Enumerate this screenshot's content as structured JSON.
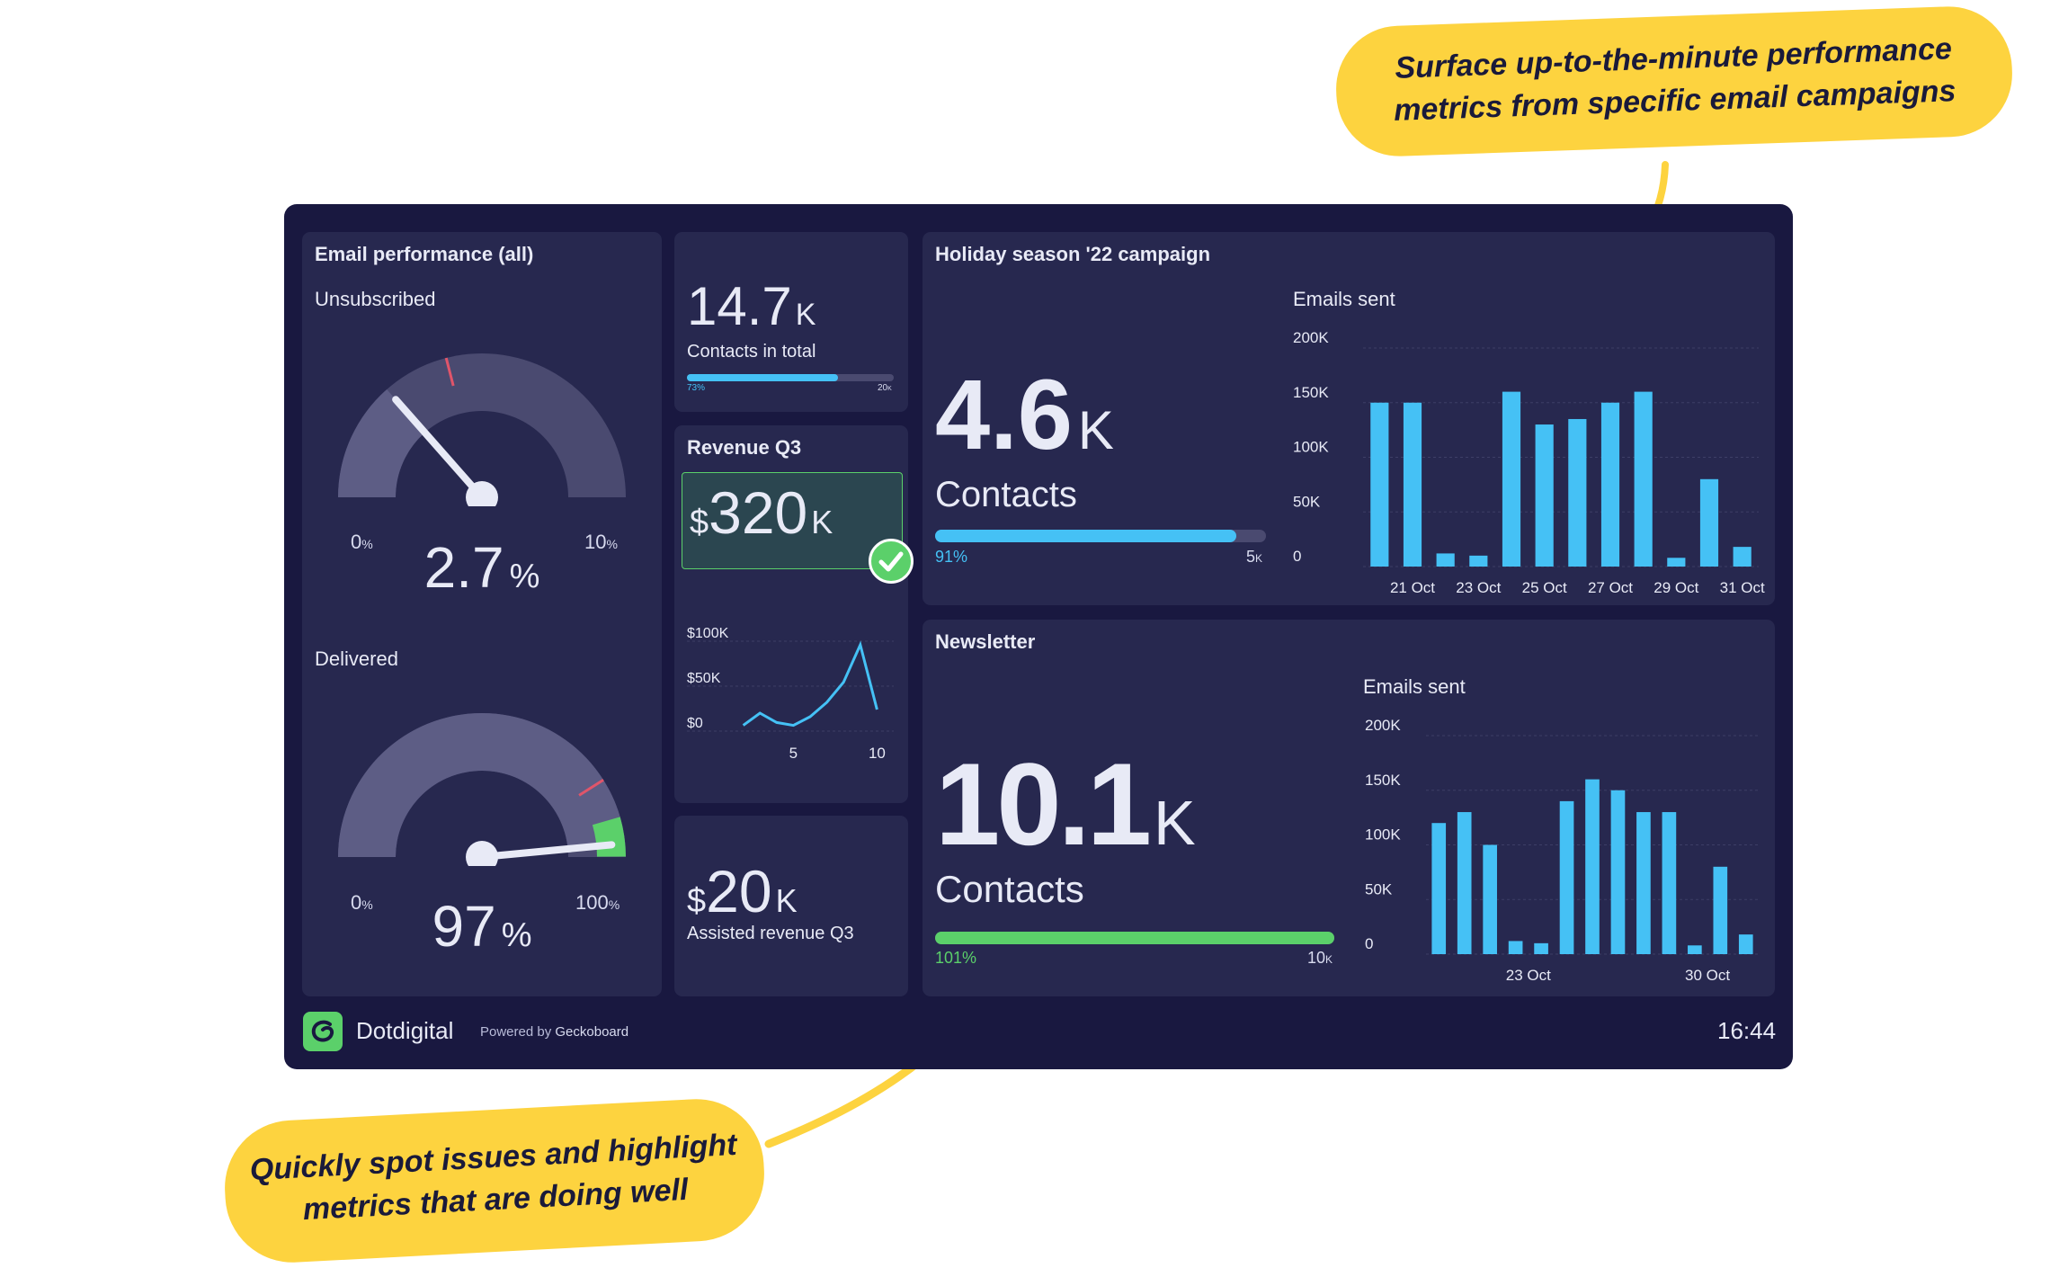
{
  "callouts": {
    "top": [
      "Surface up-to-the-minute performance",
      "metrics from specific email campaigns"
    ],
    "bottom": [
      "Quickly spot issues and highlight",
      "metrics that are doing well"
    ]
  },
  "email_perf": {
    "title": "Email performance (all)",
    "unsub": {
      "label": "Unsubscribed",
      "value": "2.7",
      "unit": "%",
      "min": "0",
      "max": "10",
      "unit_small": "%",
      "fraction": 0.27
    },
    "delivered": {
      "label": "Delivered",
      "value": "97",
      "unit": "%",
      "min": "0",
      "max": "100",
      "unit_small": "%",
      "fraction": 0.97
    }
  },
  "contacts_total": {
    "value": "14.7",
    "suffix": "K",
    "label": "Contacts in total",
    "progress": 0.73,
    "bar_left": "73%",
    "bar_right": "20",
    "bar_right_unit": "K"
  },
  "revenue": {
    "title": "Revenue Q3",
    "currency": "$",
    "value": "320",
    "suffix": "K",
    "status": "check-icon",
    "chart_data": {
      "type": "line",
      "x": [
        2,
        3,
        4,
        5,
        6,
        7,
        8,
        9,
        10
      ],
      "values": [
        8,
        25,
        12,
        8,
        20,
        40,
        68,
        120,
        30
      ],
      "yticks": [
        "$100K",
        "$50K",
        "$0"
      ],
      "xticks": [
        "5",
        "10"
      ],
      "ylim": [
        0,
        125
      ]
    }
  },
  "assisted": {
    "currency": "$",
    "value": "20",
    "suffix": "K",
    "label": "Assisted revenue Q3"
  },
  "holiday": {
    "title": "Holiday season '22 campaign",
    "value": "4.6",
    "suffix": "K",
    "label": "Contacts",
    "progress": 0.91,
    "bar_left": "91%",
    "bar_right": "5",
    "bar_right_unit": "K",
    "chart_title": "Emails sent",
    "chart_data": {
      "type": "bar",
      "values": [
        150,
        150,
        12,
        10,
        160,
        130,
        135,
        150,
        160,
        8,
        80,
        18
      ],
      "yticks": [
        "200K",
        "150K",
        "100K",
        "50K",
        "0"
      ],
      "xticks": [
        "21 Oct",
        "23 Oct",
        "25 Oct",
        "27 Oct",
        "29 Oct",
        "31 Oct"
      ],
      "ylim": [
        0,
        200
      ]
    }
  },
  "newsletter": {
    "title": "Newsletter",
    "value": "10.1",
    "suffix": "K",
    "label": "Contacts",
    "progress": 1.0,
    "bar_left": "101%",
    "bar_right": "10",
    "bar_right_unit": "K",
    "chart_title": "Emails sent",
    "chart_data": {
      "type": "bar",
      "values": [
        120,
        130,
        100,
        12,
        10,
        140,
        160,
        150,
        130,
        130,
        8,
        80,
        18
      ],
      "yticks": [
        "200K",
        "150K",
        "100K",
        "50K",
        "0"
      ],
      "xticks": [
        "23 Oct",
        "30 Oct"
      ],
      "ylim": [
        0,
        200
      ]
    }
  },
  "footer": {
    "brand": "Dotdigital",
    "powered_prefix": "Powered by",
    "powered_name": "Geckoboard",
    "time": "16:44"
  },
  "colors": {
    "bg": "#191840",
    "card": "#27284f",
    "blue": "#45c1f5",
    "green": "#5bd06a",
    "red": "#e0556a",
    "yellow": "#fdd33f"
  }
}
